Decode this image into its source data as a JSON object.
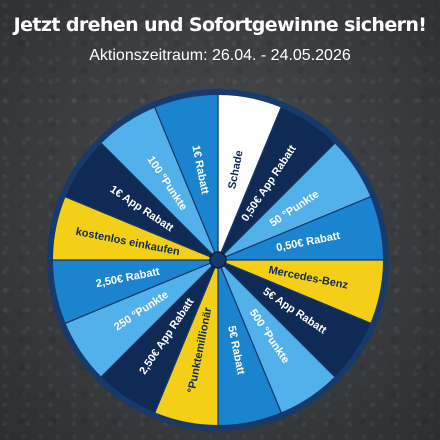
{
  "header": {
    "title": "Jetzt drehen und Sofortgewinne sichern!",
    "campaign_period": "Aktionszeitraum: 26.04. - 24.05.2026"
  },
  "wheel": {
    "colors": {
      "navy": "#0f2a55",
      "blue": "#1b84cf",
      "light_blue": "#52b0ea",
      "yellow": "#f4cf18",
      "white": "#ffffff",
      "rim": "#173a6a"
    },
    "segments": [
      {
        "label": "Schade",
        "color": "white"
      },
      {
        "label": "0,50€ App Rabatt",
        "color": "navy"
      },
      {
        "label": "50 °Punkte",
        "color": "light_blue"
      },
      {
        "label": "0,50€ Rabatt",
        "color": "blue"
      },
      {
        "label": "Mercedes-Benz",
        "color": "yellow"
      },
      {
        "label": "5€ App Rabatt",
        "color": "navy"
      },
      {
        "label": "500 °Punkte",
        "color": "light_blue"
      },
      {
        "label": "5€ Rabatt",
        "color": "blue"
      },
      {
        "label": "°Punktemillionär",
        "color": "yellow"
      },
      {
        "label": "2,50€ App Rabatt",
        "color": "navy"
      },
      {
        "label": "250 °Punkte",
        "color": "light_blue"
      },
      {
        "label": "2,50€ Rabatt",
        "color": "blue"
      },
      {
        "label": "kostenlos einkaufen",
        "color": "yellow"
      },
      {
        "label": "1€ App Rabatt",
        "color": "navy"
      },
      {
        "label": "100 °Punkte",
        "color": "light_blue"
      },
      {
        "label": "1€ Rabatt",
        "color": "blue"
      }
    ]
  }
}
